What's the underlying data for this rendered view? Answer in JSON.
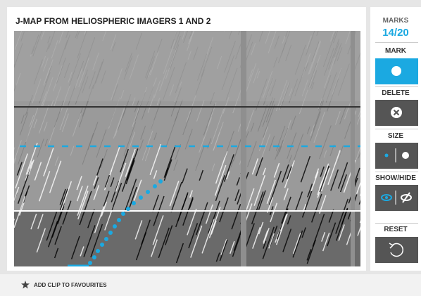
{
  "header": {
    "title": "J-MAP FROM HELIOSPHERIC IMAGERS 1 AND 2"
  },
  "sidebar": {
    "marks_label": "MARKS",
    "marks_count": "14/20",
    "tools": [
      {
        "label": "MARK"
      },
      {
        "label": "DELETE"
      },
      {
        "label": "SIZE"
      },
      {
        "label": "SHOW/HIDE"
      },
      {
        "label": "RESET"
      }
    ]
  },
  "footer": {
    "favourite": "ADD CLIP TO FAVOURITES"
  }
}
